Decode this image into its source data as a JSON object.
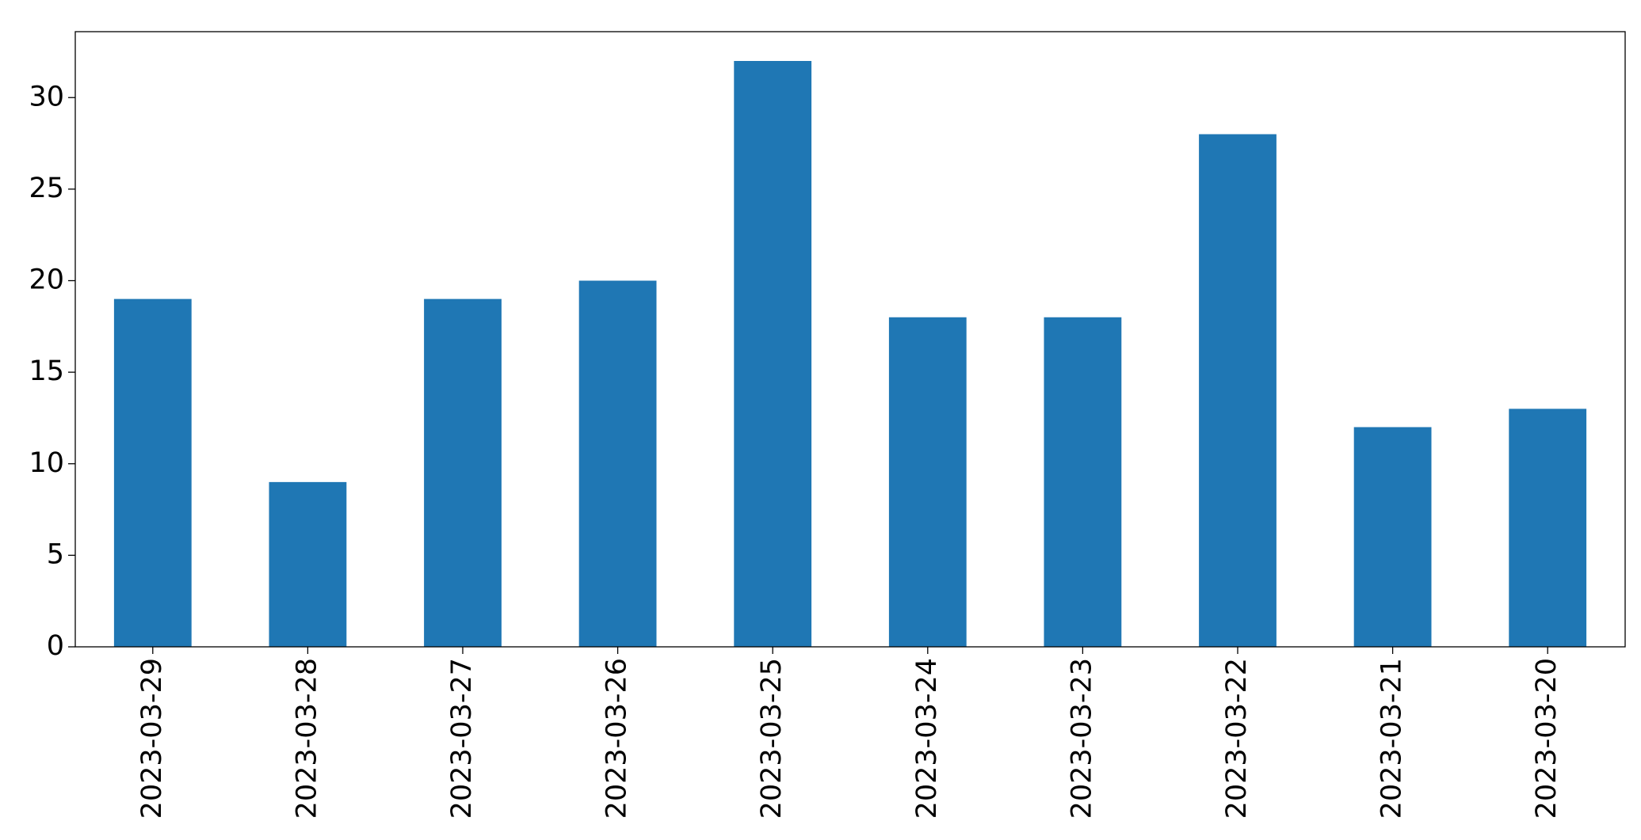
{
  "chart_data": {
    "type": "bar",
    "categories": [
      "2023-03-29",
      "2023-03-28",
      "2023-03-27",
      "2023-03-26",
      "2023-03-25",
      "2023-03-24",
      "2023-03-23",
      "2023-03-22",
      "2023-03-21",
      "2023-03-20"
    ],
    "values": [
      19,
      9,
      19,
      20,
      32,
      18,
      18,
      28,
      12,
      13
    ],
    "color": "#1f77b4",
    "ylim": [
      0,
      33.6
    ],
    "yticks": [
      0,
      5,
      10,
      15,
      20,
      25,
      30
    ],
    "grid": false
  }
}
